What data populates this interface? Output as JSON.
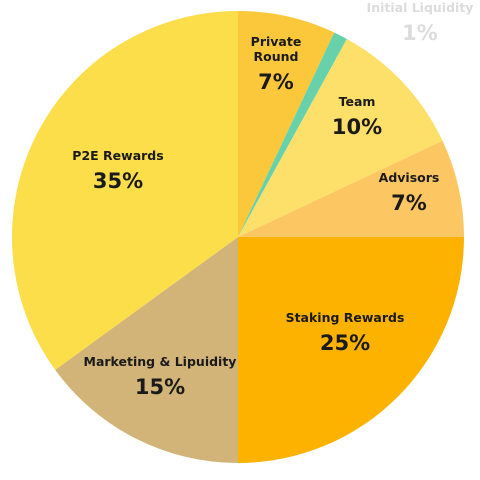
{
  "chart_data": {
    "type": "pie",
    "slices": [
      {
        "name": "Private Round",
        "name_lines": [
          "Private",
          "Round"
        ],
        "value": 7,
        "value_label": "7%",
        "color": "#fac83a"
      },
      {
        "name": "Initial Liquidity",
        "name_lines": [
          "Initial Liquidity"
        ],
        "value": 1,
        "value_label": "1%",
        "color": "#66d1aa"
      },
      {
        "name": "Team",
        "name_lines": [
          "Team"
        ],
        "value": 10,
        "value_label": "10%",
        "color": "#fde069"
      },
      {
        "name": "Advisors",
        "name_lines": [
          "Advisors"
        ],
        "value": 7,
        "value_label": "7%",
        "color": "#fcc762"
      },
      {
        "name": "Staking Rewards",
        "name_lines": [
          "Staking Rewards"
        ],
        "value": 25,
        "value_label": "25%",
        "color": "#feb200"
      },
      {
        "name": "Marketing & Lipuidity",
        "name_lines": [
          "Marketing & Lipuidity"
        ],
        "value": 15,
        "value_label": "15%",
        "color": "#d2b478"
      },
      {
        "name": "P2E Rewards",
        "name_lines": [
          "P2E Rewards"
        ],
        "value": 35,
        "value_label": "35%",
        "color": "#fcdd4a"
      }
    ],
    "start": "12 o'clock",
    "direction": "clockwise",
    "legend": "none",
    "labels": "inside"
  }
}
